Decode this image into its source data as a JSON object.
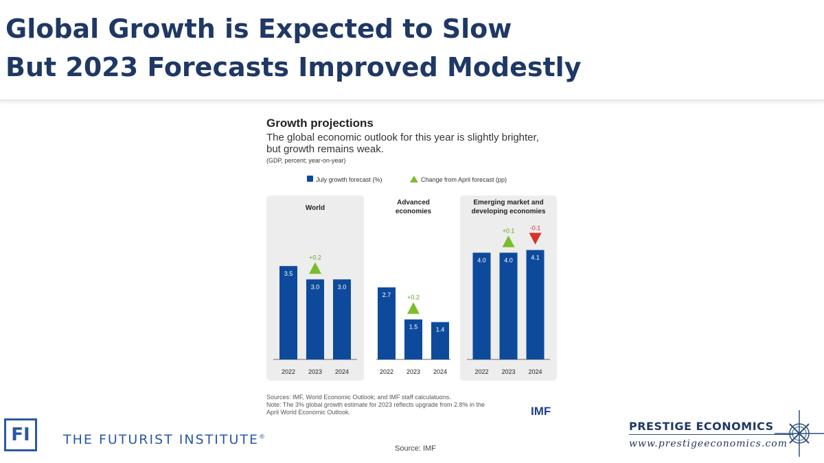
{
  "slide": {
    "title_line1": "Global Growth is Expected to Slow",
    "title_line2": "But 2023 Forecasts Improved Modestly",
    "source": "Source: IMF"
  },
  "chart_data": {
    "type": "bar",
    "title": "Growth projections",
    "subtitle": "The global economic outlook for this year is slightly brighter, but growth remains weak.",
    "units": "(GDP, percent; year-on-year)",
    "legend": {
      "bar": "July growth forecast (%)",
      "marker": "Change from April forecast (pp)"
    },
    "colors": {
      "bar": "#0d4a9c",
      "up": "#7cbd2a",
      "down": "#d9302b",
      "panel": "#ededed"
    },
    "categories": [
      "2022",
      "2023",
      "2024"
    ],
    "groups": [
      {
        "name": "World",
        "values": [
          3.5,
          3.0,
          3.0
        ],
        "labels": [
          "3.5",
          "3.0",
          "3.0"
        ],
        "changes": [
          null,
          0.2,
          null
        ],
        "change_labels": [
          "",
          "+0.2",
          ""
        ],
        "shaded": true
      },
      {
        "name": "Advanced economies",
        "values": [
          2.7,
          1.5,
          1.4
        ],
        "labels": [
          "2.7",
          "1.5",
          "1.4"
        ],
        "changes": [
          null,
          0.2,
          null
        ],
        "change_labels": [
          "",
          "+0.2",
          ""
        ],
        "shaded": false
      },
      {
        "name": "Emerging market and developing economies",
        "values": [
          4.0,
          4.0,
          4.1
        ],
        "labels": [
          "4.0",
          "4.0",
          "4.1"
        ],
        "changes": [
          null,
          0.1,
          -0.1
        ],
        "change_labels": [
          "",
          "+0.1",
          "-0.1"
        ],
        "shaded": true
      }
    ],
    "group_title_lines": [
      [
        "World"
      ],
      [
        "Advanced",
        "economies"
      ],
      [
        "Emerging market and",
        "developing economies"
      ]
    ],
    "notes": [
      "Sources: IMF, World Economic Outlook; and IMF staff calculatuons.",
      "Note: The 3% global growth estimate for 2023 reflects upgrade from 2.8% in the April World Economic Outlook."
    ],
    "logo": "IMF"
  },
  "footer": {
    "fi_logo": "FI",
    "fi_name": "THE FUTURIST INSTITUTE",
    "fi_mark": "®",
    "pe_name": "PRESTIGE ECONOMICS",
    "pe_url": "www.prestigeeconomics.com"
  }
}
